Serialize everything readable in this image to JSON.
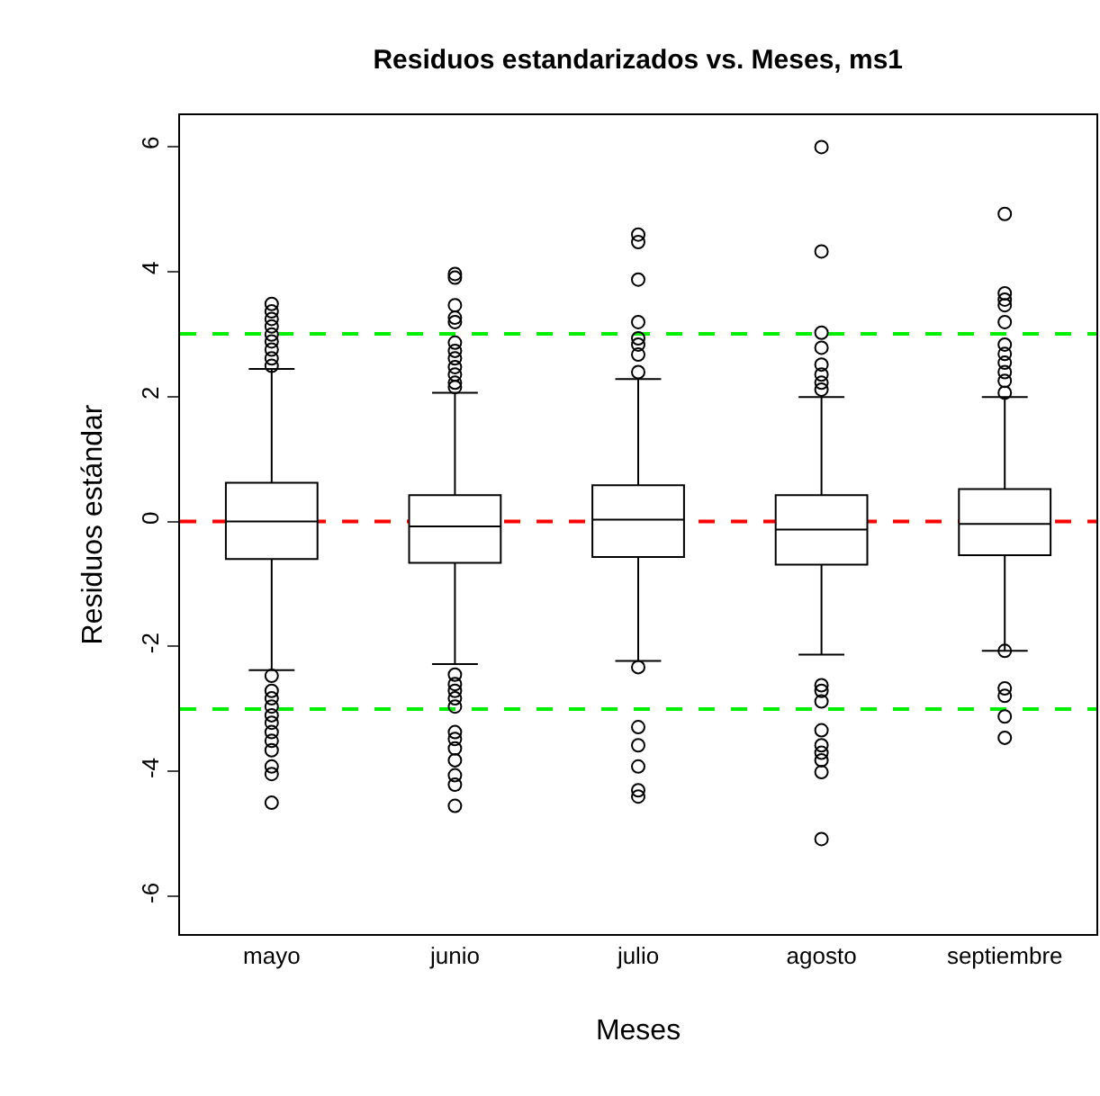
{
  "chart_data": {
    "type": "box",
    "title": "Residuos estandarizados vs. Meses, ms1",
    "xlabel": "Meses",
    "ylabel": "Residuos estándar",
    "categories": [
      "mayo",
      "junio",
      "julio",
      "agosto",
      "septiembre"
    ],
    "boxes": [
      {
        "low": -2.38,
        "q1": -0.6,
        "median": 0,
        "q3": 0.62,
        "high": 2.44,
        "outliers": [
          3.48,
          3.36,
          3.24,
          3.12,
          2.99,
          2.88,
          2.75,
          2.61,
          2.49,
          -2.47,
          -2.71,
          -2.83,
          -2.96,
          -3.1,
          -3.22,
          -3.37,
          -3.51,
          -3.66,
          -3.92,
          -4.04,
          -4.5
        ]
      },
      {
        "low": -2.28,
        "q1": -0.66,
        "median": -0.08,
        "q3": 0.42,
        "high": 2.06,
        "outliers": [
          3.96,
          3.9,
          3.46,
          3.26,
          3.19,
          2.86,
          2.73,
          2.61,
          2.47,
          2.35,
          2.22,
          2.15,
          -2.45,
          -2.6,
          -2.71,
          -2.83,
          -2.96,
          -3.37,
          -3.48,
          -3.63,
          -3.82,
          -4.06,
          -4.21,
          -4.55
        ]
      },
      {
        "low": -2.23,
        "q1": -0.57,
        "median": 0.03,
        "q3": 0.58,
        "high": 2.28,
        "outliers": [
          4.59,
          4.47,
          3.87,
          3.19,
          2.93,
          2.83,
          2.67,
          2.39,
          -2.33,
          -3.29,
          -3.58,
          -3.92,
          -4.3,
          -4.4
        ]
      },
      {
        "low": -2.13,
        "q1": -0.69,
        "median": -0.13,
        "q3": 0.42,
        "high": 1.99,
        "outliers": [
          5.99,
          4.32,
          3.02,
          2.78,
          2.51,
          2.35,
          2.22,
          2.11,
          -2.62,
          -2.71,
          -2.88,
          -3.34,
          -3.58,
          -3.7,
          -3.82,
          -4.01,
          -5.08
        ]
      },
      {
        "low": -2.07,
        "q1": -0.54,
        "median": -0.04,
        "q3": 0.52,
        "high": 1.99,
        "outliers": [
          4.92,
          3.65,
          3.55,
          3.46,
          3.19,
          2.83,
          2.68,
          2.54,
          2.39,
          2.25,
          2.06,
          -2.07,
          -2.67,
          -2.79,
          -3.12,
          -3.46
        ]
      }
    ],
    "ylim": [
      -6.6,
      6.5
    ],
    "yticks": [
      -6,
      -4,
      -2,
      0,
      2,
      4,
      6
    ],
    "ref_lines": [
      {
        "axis": "y",
        "value": 0,
        "color": "#ff0000",
        "line_style": "dashed"
      },
      {
        "axis": "y",
        "value": 3,
        "color": "#00ee00",
        "line_style": "dashed"
      },
      {
        "axis": "y",
        "value": -3,
        "color": "#00ee00",
        "line_style": "dashed"
      }
    ],
    "grid": false
  }
}
